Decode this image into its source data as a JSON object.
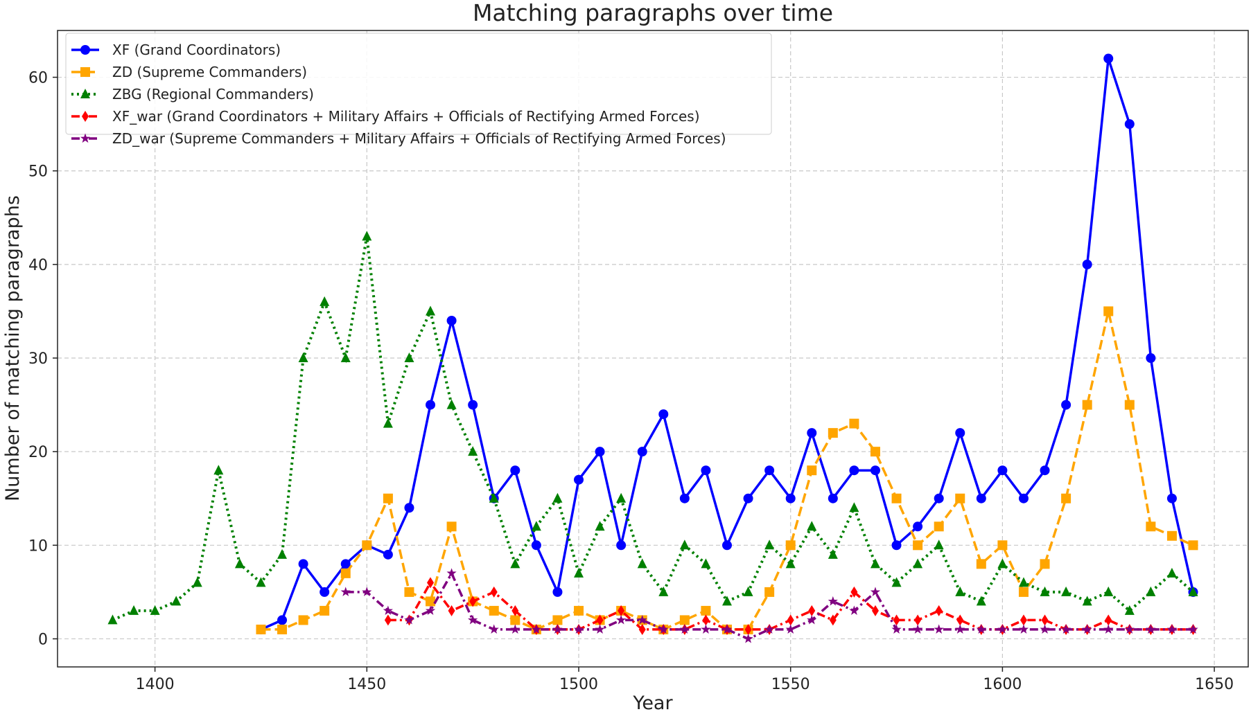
{
  "chart_data": {
    "type": "line",
    "title": "Matching paragraphs over time",
    "xlabel": "Year",
    "ylabel": "Number of matching paragraphs",
    "xlim": [
      1377,
      1658
    ],
    "ylim": [
      -3,
      65
    ],
    "xticks": [
      1400,
      1450,
      1500,
      1550,
      1600,
      1650
    ],
    "yticks": [
      0,
      10,
      20,
      30,
      40,
      50,
      60
    ],
    "grid": true,
    "legend_position": "top-left",
    "series": [
      {
        "name": "XF (Grand Coordinators)",
        "color": "#0000ff",
        "marker": "circle",
        "dash": "solid",
        "x": [
          1425,
          1430,
          1435,
          1440,
          1445,
          1450,
          1455,
          1460,
          1465,
          1470,
          1475,
          1480,
          1485,
          1490,
          1495,
          1500,
          1505,
          1510,
          1515,
          1520,
          1525,
          1530,
          1535,
          1540,
          1545,
          1550,
          1555,
          1560,
          1565,
          1570,
          1575,
          1580,
          1585,
          1590,
          1595,
          1600,
          1605,
          1610,
          1615,
          1620,
          1625,
          1630,
          1635,
          1640,
          1645
        ],
        "y": [
          1,
          2,
          8,
          5,
          8,
          10,
          9,
          14,
          25,
          34,
          25,
          15,
          18,
          10,
          5,
          17,
          20,
          10,
          20,
          24,
          15,
          18,
          10,
          15,
          18,
          15,
          22,
          15,
          18,
          18,
          10,
          12,
          15,
          22,
          15,
          18,
          15,
          18,
          25,
          40,
          62,
          55,
          30,
          15,
          5
        ]
      },
      {
        "name": "ZD (Supreme Commanders)",
        "color": "#ffa500",
        "marker": "square",
        "dash": "dashed",
        "x": [
          1425,
          1430,
          1435,
          1440,
          1445,
          1450,
          1455,
          1460,
          1465,
          1470,
          1475,
          1480,
          1485,
          1490,
          1495,
          1500,
          1505,
          1510,
          1515,
          1520,
          1525,
          1530,
          1535,
          1540,
          1545,
          1550,
          1555,
          1560,
          1565,
          1570,
          1575,
          1580,
          1585,
          1590,
          1595,
          1600,
          1605,
          1610,
          1615,
          1620,
          1625,
          1630,
          1635,
          1640,
          1645
        ],
        "y": [
          1,
          1,
          2,
          3,
          7,
          10,
          15,
          5,
          4,
          12,
          4,
          3,
          2,
          1,
          2,
          3,
          2,
          3,
          2,
          1,
          2,
          3,
          1,
          1,
          5,
          10,
          18,
          22,
          23,
          20,
          15,
          10,
          12,
          15,
          8,
          10,
          5,
          8,
          15,
          25,
          35,
          25,
          12,
          11,
          10
        ]
      },
      {
        "name": "ZBG (Regional Commanders)",
        "color": "#008000",
        "marker": "triangle",
        "dash": "dotted",
        "x": [
          1390,
          1395,
          1400,
          1405,
          1410,
          1415,
          1420,
          1425,
          1430,
          1435,
          1440,
          1445,
          1450,
          1455,
          1460,
          1465,
          1470,
          1475,
          1480,
          1485,
          1490,
          1495,
          1500,
          1505,
          1510,
          1515,
          1520,
          1525,
          1530,
          1535,
          1540,
          1545,
          1550,
          1555,
          1560,
          1565,
          1570,
          1575,
          1580,
          1585,
          1590,
          1595,
          1600,
          1605,
          1610,
          1615,
          1620,
          1625,
          1630,
          1635,
          1640,
          1645
        ],
        "y": [
          2,
          3,
          3,
          4,
          6,
          18,
          8,
          6,
          9,
          30,
          36,
          30,
          43,
          23,
          30,
          35,
          25,
          20,
          15,
          8,
          12,
          15,
          7,
          12,
          15,
          8,
          5,
          10,
          8,
          4,
          5,
          10,
          8,
          12,
          9,
          14,
          8,
          6,
          8,
          10,
          5,
          4,
          8,
          6,
          5,
          5,
          4,
          5,
          3,
          5,
          7,
          5
        ]
      },
      {
        "name": "XF_war (Grand Coordinators + Military Affairs + Officials of Rectifying Armed Forces)",
        "color": "#ff0000",
        "marker": "diamond",
        "dash": "dashdot",
        "x": [
          1455,
          1460,
          1465,
          1470,
          1475,
          1480,
          1485,
          1490,
          1495,
          1500,
          1505,
          1510,
          1515,
          1520,
          1525,
          1530,
          1535,
          1540,
          1545,
          1550,
          1555,
          1560,
          1565,
          1570,
          1575,
          1580,
          1585,
          1590,
          1595,
          1600,
          1605,
          1610,
          1615,
          1620,
          1625,
          1630,
          1635,
          1640,
          1645
        ],
        "y": [
          2,
          2,
          6,
          3,
          4,
          5,
          3,
          1,
          1,
          1,
          2,
          3,
          1,
          1,
          1,
          2,
          1,
          1,
          1,
          2,
          3,
          2,
          5,
          3,
          2,
          2,
          3,
          2,
          1,
          1,
          2,
          2,
          1,
          1,
          2,
          1,
          1,
          1,
          1
        ]
      },
      {
        "name": "ZD_war (Supreme Commanders + Military Affairs + Officials of Rectifying Armed Forces)",
        "color": "#800080",
        "marker": "star",
        "dash": "dashdot",
        "x": [
          1445,
          1450,
          1455,
          1460,
          1465,
          1470,
          1475,
          1480,
          1485,
          1490,
          1495,
          1500,
          1505,
          1510,
          1515,
          1520,
          1525,
          1530,
          1535,
          1540,
          1545,
          1550,
          1555,
          1560,
          1565,
          1570,
          1575,
          1580,
          1585,
          1590,
          1595,
          1600,
          1605,
          1610,
          1615,
          1620,
          1625,
          1630,
          1635,
          1640,
          1645
        ],
        "y": [
          5,
          5,
          3,
          2,
          3,
          7,
          2,
          1,
          1,
          1,
          1,
          1,
          1,
          2,
          2,
          1,
          1,
          1,
          1,
          0,
          1,
          1,
          2,
          4,
          3,
          5,
          1,
          1,
          1,
          1,
          1,
          1,
          1,
          1,
          1,
          1,
          1,
          1,
          1,
          1,
          1
        ]
      }
    ]
  }
}
